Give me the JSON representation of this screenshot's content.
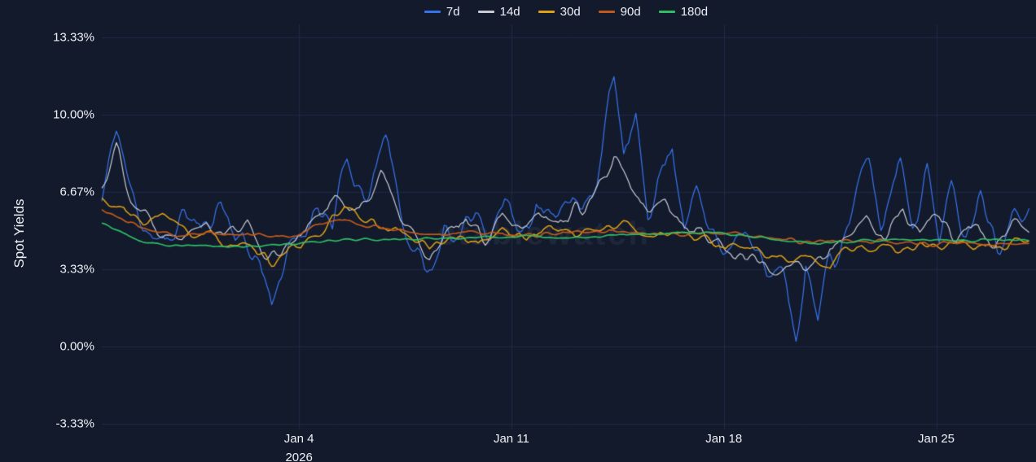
{
  "page": {
    "background": "#131a2c",
    "grid_color": "#1f2a47",
    "text_color": "#edf0f5"
  },
  "watermark": "stablewatch",
  "y_axis": {
    "title": "Spot Yields",
    "ticks": [
      "13.33%",
      "10.00%",
      "6.67%",
      "3.33%",
      "0.00%",
      "-3.33%"
    ],
    "tick_values": [
      13.33,
      10.0,
      6.67,
      3.33,
      0.0,
      -3.33
    ]
  },
  "x_axis": {
    "ticks": [
      {
        "label": "Jan 4",
        "sublabel": "2026",
        "day": 6.5
      },
      {
        "label": "Jan 11",
        "sublabel": "",
        "day": 13.5
      },
      {
        "label": "Jan 18",
        "sublabel": "",
        "day": 20.5
      },
      {
        "label": "Jan 25",
        "sublabel": "",
        "day": 27.5
      }
    ]
  },
  "chart_data": {
    "type": "line",
    "title": "",
    "xlabel": "",
    "ylabel": "Spot Yields",
    "ylim": [
      -3.33,
      13.33
    ],
    "x_domain": [
      0,
      30.6
    ],
    "x_unit": "days from Dec 28 2025 (ticks are calendar dates, Jan 2026)",
    "grid": true,
    "legend_position": "top-center",
    "legend_entries": [
      "7d",
      "14d",
      "30d",
      "90d",
      "180d"
    ],
    "series": [
      {
        "name": "7d",
        "color": "#3672e9",
        "width": 1.25,
        "noise_amp": 0.85,
        "seed": 11,
        "anchors": [
          [
            0,
            6.2
          ],
          [
            0.5,
            9.6
          ],
          [
            0.9,
            6.8
          ],
          [
            1.4,
            5.4
          ],
          [
            2.1,
            4.1
          ],
          [
            2.7,
            5.9
          ],
          [
            3.3,
            4.9
          ],
          [
            3.9,
            6.3
          ],
          [
            4.5,
            4.7
          ],
          [
            5.1,
            3.9
          ],
          [
            5.6,
            2.1
          ],
          [
            6.1,
            3.9
          ],
          [
            6.6,
            4.6
          ],
          [
            7.1,
            6.4
          ],
          [
            7.6,
            5.3
          ],
          [
            8.1,
            7.9
          ],
          [
            8.6,
            6.1
          ],
          [
            9.0,
            7.2
          ],
          [
            9.4,
            9.4
          ],
          [
            9.9,
            5.4
          ],
          [
            10.4,
            3.9
          ],
          [
            10.9,
            2.9
          ],
          [
            11.3,
            5.6
          ],
          [
            11.8,
            4.1
          ],
          [
            12.3,
            6.1
          ],
          [
            12.8,
            5.1
          ],
          [
            13.3,
            6.4
          ],
          [
            13.8,
            4.9
          ],
          [
            14.3,
            6.3
          ],
          [
            14.8,
            5.3
          ],
          [
            15.3,
            6.9
          ],
          [
            15.8,
            5.4
          ],
          [
            16.3,
            7.4
          ],
          [
            16.9,
            11.6
          ],
          [
            17.2,
            8.2
          ],
          [
            17.6,
            9.4
          ],
          [
            18.0,
            6.1
          ],
          [
            18.4,
            7.4
          ],
          [
            18.8,
            8.6
          ],
          [
            19.2,
            5.6
          ],
          [
            19.6,
            6.6
          ],
          [
            20.0,
            5.1
          ],
          [
            20.5,
            4.4
          ],
          [
            21.0,
            5.3
          ],
          [
            21.5,
            3.9
          ],
          [
            22.0,
            3.4
          ],
          [
            22.5,
            3.0
          ],
          [
            22.9,
            -0.5
          ],
          [
            23.2,
            3.6
          ],
          [
            23.6,
            1.4
          ],
          [
            24.0,
            3.9
          ],
          [
            24.4,
            4.6
          ],
          [
            24.8,
            6.1
          ],
          [
            25.3,
            8.1
          ],
          [
            25.7,
            4.9
          ],
          [
            26.3,
            8.6
          ],
          [
            26.7,
            5.4
          ],
          [
            27.2,
            7.6
          ],
          [
            27.6,
            4.9
          ],
          [
            28.0,
            6.6
          ],
          [
            28.5,
            5.1
          ],
          [
            29.0,
            6.9
          ],
          [
            29.5,
            4.7
          ],
          [
            30.0,
            5.6
          ],
          [
            30.6,
            6.6
          ]
        ]
      },
      {
        "name": "14d",
        "color": "#c6cbd4",
        "width": 1.2,
        "noise_amp": 0.5,
        "seed": 22,
        "anchors": [
          [
            0,
            6.9
          ],
          [
            0.5,
            8.7
          ],
          [
            1.0,
            6.4
          ],
          [
            1.8,
            5.1
          ],
          [
            2.5,
            4.9
          ],
          [
            3.2,
            5.6
          ],
          [
            4.0,
            4.9
          ],
          [
            4.8,
            5.3
          ],
          [
            5.5,
            3.8
          ],
          [
            6.2,
            4.6
          ],
          [
            7.0,
            5.4
          ],
          [
            7.8,
            6.4
          ],
          [
            8.5,
            5.9
          ],
          [
            9.2,
            7.5
          ],
          [
            9.6,
            6.1
          ],
          [
            10.2,
            4.9
          ],
          [
            10.8,
            3.7
          ],
          [
            11.4,
            4.7
          ],
          [
            12.0,
            5.6
          ],
          [
            12.6,
            4.7
          ],
          [
            13.2,
            5.9
          ],
          [
            13.8,
            5.1
          ],
          [
            14.4,
            6.1
          ],
          [
            15.0,
            5.2
          ],
          [
            15.6,
            5.9
          ],
          [
            16.2,
            6.3
          ],
          [
            16.9,
            7.9
          ],
          [
            17.4,
            6.9
          ],
          [
            18.0,
            5.7
          ],
          [
            18.6,
            6.4
          ],
          [
            19.2,
            5.3
          ],
          [
            20.0,
            4.7
          ],
          [
            20.8,
            4.1
          ],
          [
            21.6,
            3.6
          ],
          [
            22.2,
            3.2
          ],
          [
            22.8,
            3.9
          ],
          [
            23.4,
            3.2
          ],
          [
            24.0,
            4.3
          ],
          [
            24.6,
            4.4
          ],
          [
            25.2,
            5.6
          ],
          [
            25.8,
            4.6
          ],
          [
            26.4,
            5.8
          ],
          [
            27.0,
            4.8
          ],
          [
            27.6,
            5.7
          ],
          [
            28.2,
            4.6
          ],
          [
            28.8,
            5.4
          ],
          [
            29.4,
            4.4
          ],
          [
            30.0,
            5.2
          ],
          [
            30.6,
            5.0
          ]
        ]
      },
      {
        "name": "30d",
        "color": "#dfa114",
        "width": 1.5,
        "noise_amp": 0.32,
        "seed": 33,
        "anchors": [
          [
            0,
            6.3
          ],
          [
            0.6,
            5.9
          ],
          [
            1.2,
            5.4
          ],
          [
            2.0,
            5.6
          ],
          [
            2.8,
            4.9
          ],
          [
            3.6,
            4.7
          ],
          [
            4.4,
            4.4
          ],
          [
            5.2,
            3.9
          ],
          [
            5.8,
            3.6
          ],
          [
            6.4,
            4.3
          ],
          [
            7.2,
            4.9
          ],
          [
            8.0,
            5.9
          ],
          [
            8.6,
            5.6
          ],
          [
            9.2,
            5.2
          ],
          [
            10.0,
            4.8
          ],
          [
            10.8,
            4.4
          ],
          [
            11.6,
            4.7
          ],
          [
            12.4,
            4.5
          ],
          [
            13.2,
            5.0
          ],
          [
            14.0,
            4.7
          ],
          [
            14.8,
            5.2
          ],
          [
            15.6,
            4.8
          ],
          [
            16.4,
            5.1
          ],
          [
            17.2,
            5.3
          ],
          [
            18.0,
            4.8
          ],
          [
            18.8,
            5.0
          ],
          [
            19.6,
            4.6
          ],
          [
            20.4,
            4.4
          ],
          [
            21.2,
            4.2
          ],
          [
            22.0,
            3.9
          ],
          [
            22.8,
            3.5
          ],
          [
            23.4,
            4.0
          ],
          [
            24.0,
            3.4
          ],
          [
            24.6,
            4.2
          ],
          [
            25.4,
            4.4
          ],
          [
            26.2,
            4.2
          ],
          [
            27.0,
            4.4
          ],
          [
            27.8,
            4.3
          ],
          [
            28.6,
            4.5
          ],
          [
            29.4,
            4.2
          ],
          [
            30.6,
            4.4
          ]
        ]
      },
      {
        "name": "90d",
        "color": "#bf5a1c",
        "width": 1.7,
        "noise_amp": 0.13,
        "seed": 44,
        "anchors": [
          [
            0,
            5.9
          ],
          [
            0.8,
            5.4
          ],
          [
            1.6,
            5.0
          ],
          [
            2.4,
            4.8
          ],
          [
            3.2,
            4.9
          ],
          [
            4.0,
            4.8
          ],
          [
            4.8,
            4.9
          ],
          [
            5.6,
            4.7
          ],
          [
            6.4,
            4.8
          ],
          [
            7.2,
            5.3
          ],
          [
            8.0,
            5.5
          ],
          [
            8.8,
            5.2
          ],
          [
            9.6,
            5.0
          ],
          [
            10.4,
            4.9
          ],
          [
            11.2,
            4.8
          ],
          [
            12.0,
            4.9
          ],
          [
            13.0,
            4.9
          ],
          [
            14.0,
            4.8
          ],
          [
            15.0,
            4.9
          ],
          [
            16.0,
            4.9
          ],
          [
            17.0,
            5.0
          ],
          [
            18.0,
            4.9
          ],
          [
            19.0,
            4.8
          ],
          [
            20.0,
            4.9
          ],
          [
            21.0,
            4.8
          ],
          [
            21.8,
            4.7
          ],
          [
            22.6,
            4.6
          ],
          [
            23.4,
            4.5
          ],
          [
            24.2,
            4.6
          ],
          [
            25.0,
            4.5
          ],
          [
            26.0,
            4.5
          ],
          [
            27.0,
            4.4
          ],
          [
            28.0,
            4.5
          ],
          [
            29.0,
            4.4
          ],
          [
            30.6,
            4.4
          ]
        ]
      },
      {
        "name": "180d",
        "color": "#2fbd66",
        "width": 1.7,
        "noise_amp": 0.07,
        "seed": 55,
        "anchors": [
          [
            0,
            5.3
          ],
          [
            0.6,
            5.0
          ],
          [
            1.2,
            4.6
          ],
          [
            2.0,
            4.4
          ],
          [
            3.0,
            4.35
          ],
          [
            4.0,
            4.3
          ],
          [
            5.0,
            4.35
          ],
          [
            6.0,
            4.4
          ],
          [
            7.0,
            4.5
          ],
          [
            8.0,
            4.6
          ],
          [
            9.0,
            4.65
          ],
          [
            10.0,
            4.6
          ],
          [
            11.0,
            4.65
          ],
          [
            12.0,
            4.7
          ],
          [
            13.0,
            4.7
          ],
          [
            14.0,
            4.75
          ],
          [
            15.0,
            4.7
          ],
          [
            16.0,
            4.75
          ],
          [
            17.0,
            4.8
          ],
          [
            18.0,
            4.85
          ],
          [
            19.0,
            4.9
          ],
          [
            20.0,
            4.9
          ],
          [
            20.8,
            4.85
          ],
          [
            21.6,
            4.7
          ],
          [
            22.4,
            4.6
          ],
          [
            23.0,
            4.5
          ],
          [
            23.6,
            4.45
          ],
          [
            24.2,
            4.5
          ],
          [
            25.0,
            4.55
          ],
          [
            26.0,
            4.6
          ],
          [
            27.0,
            4.6
          ],
          [
            28.0,
            4.6
          ],
          [
            29.0,
            4.6
          ],
          [
            30.6,
            4.6
          ]
        ]
      }
    ]
  }
}
